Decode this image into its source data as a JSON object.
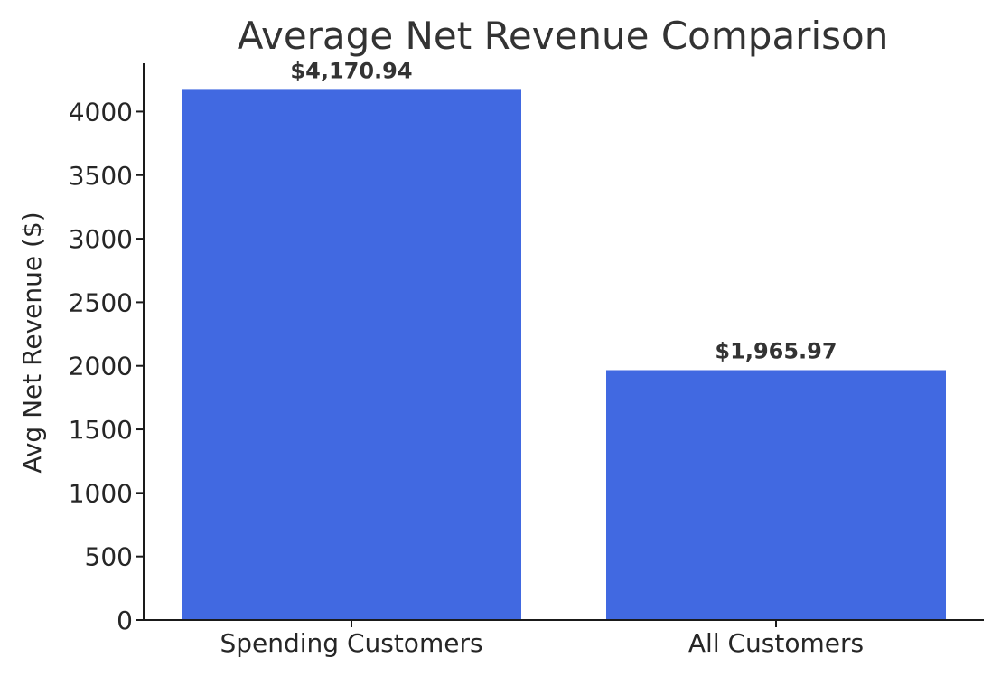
{
  "chart_data": {
    "type": "bar",
    "title": "Average Net Revenue Comparison",
    "xlabel": "",
    "ylabel": "Avg Net Revenue ($)",
    "categories": [
      "Spending Customers",
      "All Customers"
    ],
    "values": [
      4170.94,
      1965.97
    ],
    "value_labels": [
      "$4,170.94",
      "$1,965.97"
    ],
    "y_ticks": [
      0,
      500,
      1000,
      1500,
      2000,
      2500,
      3000,
      3500,
      4000
    ],
    "ylim": [
      0,
      4380
    ],
    "grid": false,
    "legend": "none",
    "bar_color": "#4169e1",
    "axis_color": "#1a1a1a"
  }
}
